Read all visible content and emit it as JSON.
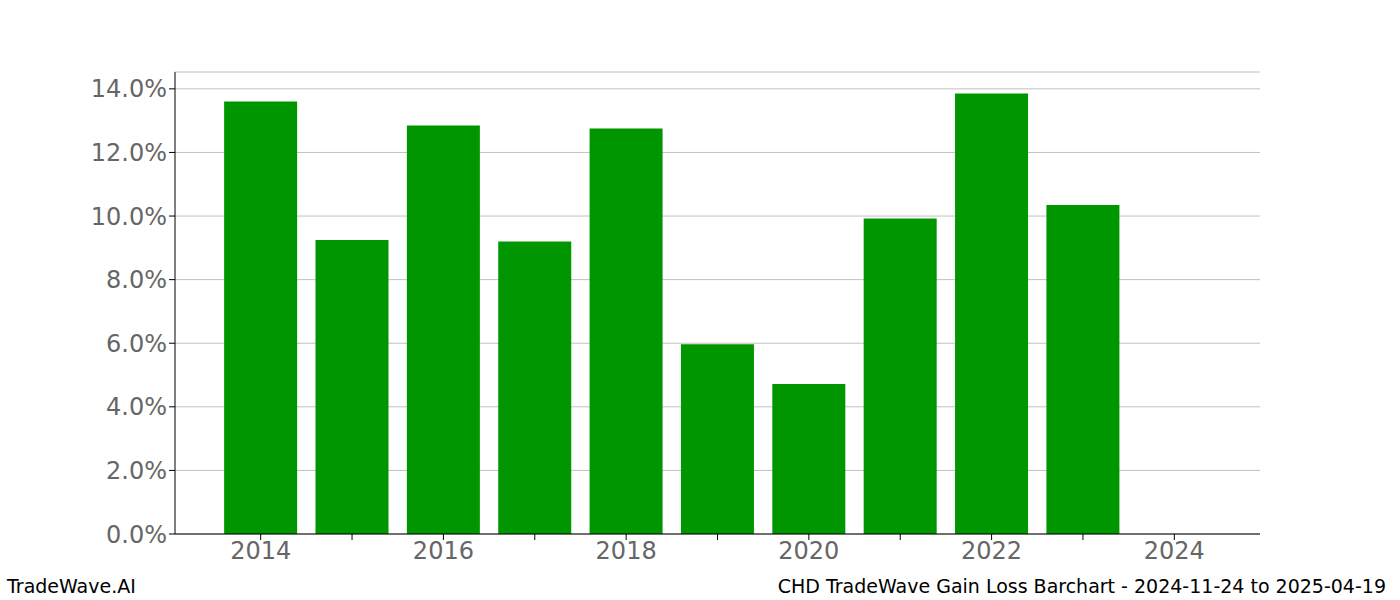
{
  "chart_data": {
    "type": "bar",
    "title": "CHD TradeWave Gain Loss Barchart - 2024-11-24 to 2025-04-19",
    "source": "TradeWave.AI",
    "categories": [
      "2014",
      null,
      "2016",
      null,
      "2018",
      null,
      "2020",
      null,
      "2022",
      null,
      "2024"
    ],
    "values": [
      13.6,
      9.25,
      12.85,
      9.2,
      12.75,
      5.97,
      4.72,
      9.92,
      13.85,
      10.35,
      null
    ],
    "color": "#009600",
    "ylim": [
      0,
      14.53
    ],
    "yticks": [
      {
        "value": 0,
        "label": "0.0%"
      },
      {
        "value": 2,
        "label": "2.0%"
      },
      {
        "value": 4,
        "label": "4.0%"
      },
      {
        "value": 6,
        "label": "6.0%"
      },
      {
        "value": 8,
        "label": "8.0%"
      },
      {
        "value": 10,
        "label": "10.0%"
      },
      {
        "value": 12,
        "label": "12.0%"
      },
      {
        "value": 14,
        "label": "14.0%"
      }
    ],
    "grid": true
  }
}
